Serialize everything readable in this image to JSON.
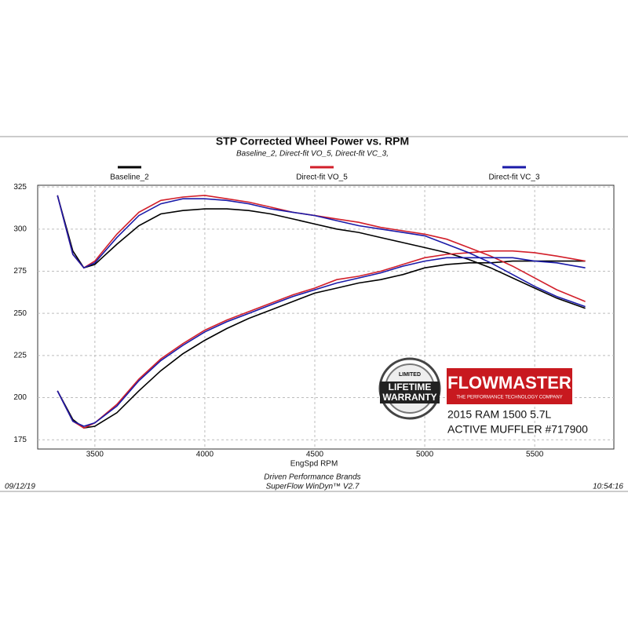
{
  "chart_data": {
    "type": "line",
    "title": "STP Corrected Wheel Power vs. RPM",
    "subtitle": "Baseline_2, Direct-fit VO_5, Direct-fit VC_3,",
    "x_label": "EngSpd  RPM",
    "x": [
      3330,
      3400,
      3450,
      3500,
      3600,
      3700,
      3800,
      3900,
      4000,
      4100,
      4200,
      4300,
      4400,
      4500,
      4600,
      4700,
      4800,
      4900,
      5000,
      5100,
      5200,
      5300,
      5400,
      5500,
      5600,
      5730
    ],
    "series": [
      {
        "name": "Baseline_2",
        "color": "#000000",
        "curves": [
          [
            320,
            287,
            277,
            279,
            291,
            302,
            309,
            311,
            312,
            312,
            311,
            309,
            306,
            303,
            300,
            298,
            295,
            292,
            289,
            286,
            282,
            277,
            271,
            265,
            259,
            253
          ],
          [
            204,
            187,
            182,
            183,
            191,
            204,
            216,
            226,
            234,
            241,
            247,
            252,
            257,
            262,
            265,
            268,
            270,
            273,
            277,
            279,
            280,
            280,
            281,
            281,
            281,
            281
          ]
        ]
      },
      {
        "name": "Direct-fit VO_5",
        "color": "#d21f2a",
        "curves": [
          [
            320,
            285,
            277,
            281,
            297,
            310,
            317,
            319,
            320,
            318,
            316,
            313,
            310,
            308,
            306,
            304,
            301,
            299,
            297,
            294,
            289,
            284,
            278,
            271,
            264,
            257
          ],
          [
            204,
            186,
            182,
            185,
            196,
            211,
            223,
            232,
            240,
            246,
            251,
            256,
            261,
            265,
            270,
            272,
            275,
            279,
            283,
            285,
            286,
            287,
            287,
            286,
            284,
            281
          ]
        ]
      },
      {
        "name": "Direct-fit VC_3",
        "color": "#1a1aa8",
        "curves": [
          [
            320,
            285,
            277,
            280,
            295,
            308,
            315,
            318,
            318,
            317,
            315,
            312,
            310,
            308,
            305,
            302,
            300,
            298,
            296,
            291,
            286,
            280,
            273,
            266,
            260,
            254
          ],
          [
            204,
            186,
            183,
            185,
            195,
            210,
            222,
            231,
            239,
            245,
            250,
            255,
            260,
            264,
            268,
            271,
            274,
            278,
            281,
            283,
            283,
            283,
            283,
            281,
            280,
            277
          ]
        ]
      }
    ],
    "xlim": [
      3240,
      5860
    ],
    "ylim": [
      169.5,
      326
    ],
    "xticks": [
      3500,
      4000,
      4500,
      5000,
      5500
    ],
    "yticks": [
      175,
      200,
      225,
      250,
      275,
      300,
      325
    ],
    "grid": true
  },
  "footer": {
    "date": "09/12/19",
    "company": "Driven Performance Brands",
    "software": "SuperFlow WinDyn™  V2.7",
    "time": "10:54:16"
  },
  "badge": {
    "top": "LIMITED",
    "line1": "LIFETIME",
    "line2": "WARRANTY"
  },
  "logo": {
    "brand": "FLOWMASTER",
    "tagline": "THE PERFORMANCE TECHNOLOGY COMPANY",
    "line1": "2015 RAM 1500 5.7L",
    "line2": "ACTIVE MUFFLER #717900"
  }
}
